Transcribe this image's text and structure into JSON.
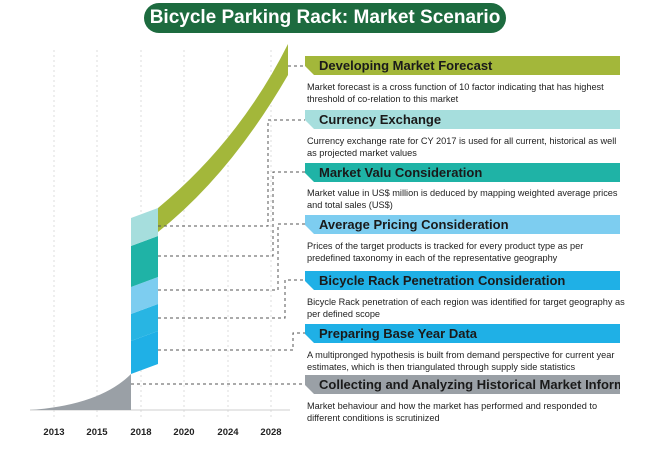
{
  "title": "Bicycle Parking Rack: Market Scenario",
  "colors": {
    "title_bg": "#1d6b3f",
    "green": "#a3b73a",
    "light_teal": "#a6dedd",
    "teal": "#1fb3a6",
    "sky": "#7dcdf0",
    "blue": "#1fb0e6",
    "gray": "#9aa0a6"
  },
  "x_axis": {
    "years": [
      "2013",
      "2015",
      "2018",
      "2020",
      "2024",
      "2028"
    ]
  },
  "steps": [
    {
      "title": "Developing Market Forecast",
      "description": "Market forecast is a cross function of 10 factor indicating that has highest threshold of co-relation to this market",
      "color": "#a3b73a"
    },
    {
      "title": "Currency Exchange",
      "description": "Currency exchange rate for CY 2017 is used for all current, historical as well as projected market values",
      "color": "#a6dedd"
    },
    {
      "title": "Market Valu Consideration",
      "description": "Market value in US$ million is deduced by mapping weighted average prices and total sales (US$)",
      "color": "#1fb3a6"
    },
    {
      "title": "Average Pricing Consideration",
      "description": "Prices of the target products is tracked for every product type as per predefined taxonomy in each of the representative geography",
      "color": "#7dcdf0"
    },
    {
      "title": "Bicycle Rack Penetration Consideration",
      "description": "Bicycle Rack penetration of each region was identified for target geography as per defined scope",
      "color": "#1fb0e6"
    },
    {
      "title": "Preparing Base Year Data",
      "description": "A multipronged hypothesis is built from demand perspective for current year estimates, which is then triangulated through supply side statistics",
      "color": "#1fb0e6"
    },
    {
      "title": "Collecting and Analyzing Historical Market Information",
      "description": "Market behaviour and how the market has performed and responded to different conditions is scrutinized",
      "color": "#9aa0a6"
    }
  ]
}
